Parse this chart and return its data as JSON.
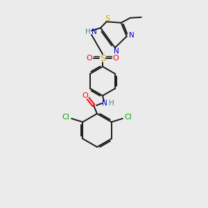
{
  "bg_color": "#ebebeb",
  "bond_color": "#1a1a1a",
  "colors": {
    "N": "#0000cc",
    "O": "#ff0000",
    "S_thio": "#ccaa00",
    "S_sulfonyl": "#ccaa00",
    "Cl": "#00aa00",
    "H": "#448888",
    "C": "#1a1a1a"
  },
  "figsize": [
    3.0,
    3.0
  ],
  "dpi": 100
}
